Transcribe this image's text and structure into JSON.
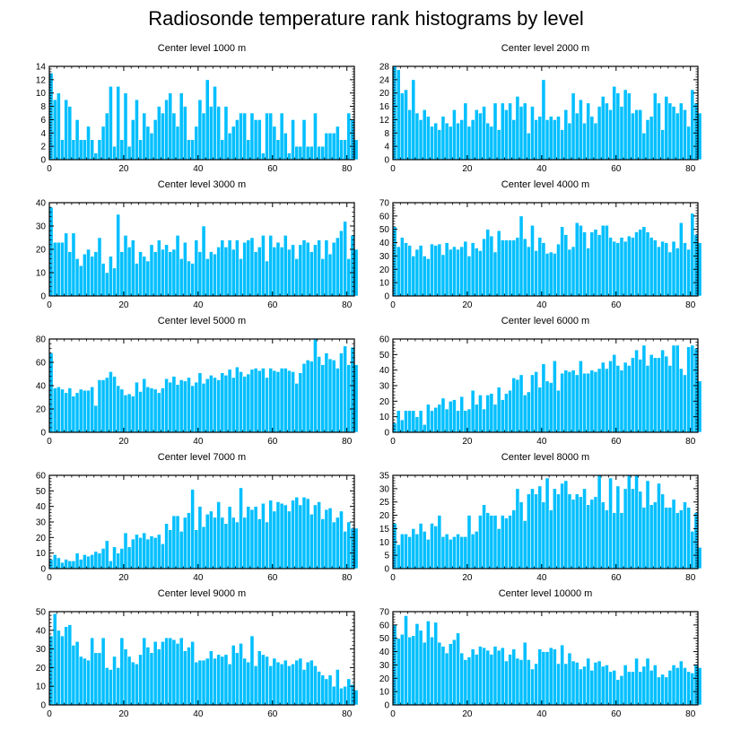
{
  "title": "Radiosonde temperature rank histograms by level",
  "colors": {
    "bar": "#00BFFF",
    "bar_edge": "#ffffff",
    "axis": "#000000"
  },
  "chart_data": [
    {
      "type": "bar",
      "title": "Center level 1000 m",
      "xlabel": "",
      "ylabel": "",
      "xlim": [
        0,
        82
      ],
      "ylim": [
        0,
        14
      ],
      "xticks": [
        0,
        20,
        40,
        60,
        80
      ],
      "yticks": [
        0,
        2,
        4,
        6,
        8,
        10,
        12,
        14
      ],
      "values": [
        13,
        9,
        10,
        3,
        9,
        8,
        3,
        6,
        3,
        3,
        5,
        3,
        1,
        3,
        5,
        7,
        11,
        2,
        11,
        3,
        10,
        2,
        6,
        9,
        3,
        7,
        5,
        4,
        6,
        8,
        7,
        9,
        10,
        7,
        5,
        10,
        8,
        3,
        3,
        5,
        9,
        7,
        12,
        8,
        11,
        8,
        3,
        8,
        4,
        5,
        6,
        7,
        7,
        3,
        7,
        6,
        6,
        1,
        7,
        7,
        5,
        3,
        7,
        4,
        1,
        6,
        2,
        2,
        6,
        2,
        2,
        7,
        2,
        2,
        4,
        4,
        4,
        5,
        3,
        3,
        7,
        6,
        3
      ]
    },
    {
      "type": "bar",
      "title": "Center level 2000 m",
      "xlabel": "",
      "ylabel": "",
      "xlim": [
        0,
        82
      ],
      "ylim": [
        0,
        28
      ],
      "xticks": [
        0,
        20,
        40,
        60,
        80
      ],
      "yticks": [
        0,
        4,
        8,
        12,
        16,
        20,
        24,
        28
      ],
      "values": [
        28,
        27,
        20,
        21,
        15,
        24,
        14,
        12,
        15,
        13,
        10,
        11,
        9,
        13,
        11,
        10,
        15,
        11,
        12,
        17,
        10,
        12,
        15,
        14,
        16,
        11,
        10,
        17,
        9,
        17,
        15,
        17,
        12,
        19,
        16,
        17,
        8,
        16,
        12,
        13,
        24,
        12,
        13,
        12,
        13,
        9,
        15,
        11,
        20,
        14,
        18,
        11,
        17,
        13,
        11,
        16,
        19,
        17,
        15,
        22,
        20,
        16,
        21,
        20,
        14,
        15,
        15,
        8,
        12,
        13,
        20,
        17,
        9,
        19,
        17,
        16,
        14,
        17,
        15,
        10,
        21,
        17,
        14
      ]
    },
    {
      "type": "bar",
      "title": "Center level 3000 m",
      "xlabel": "",
      "ylabel": "",
      "xlim": [
        0,
        82
      ],
      "ylim": [
        0,
        40
      ],
      "xticks": [
        0,
        20,
        40,
        60,
        80
      ],
      "yticks": [
        0,
        10,
        20,
        30,
        40
      ],
      "values": [
        38,
        23,
        23,
        23,
        27,
        19,
        27,
        16,
        13,
        18,
        20,
        17,
        19,
        25,
        14,
        10,
        17,
        12,
        35,
        19,
        26,
        21,
        24,
        14,
        19,
        17,
        15,
        22,
        19,
        24,
        20,
        22,
        19,
        20,
        26,
        16,
        23,
        15,
        14,
        24,
        19,
        30,
        16,
        19,
        18,
        21,
        24,
        21,
        24,
        20,
        24,
        16,
        23,
        24,
        25,
        19,
        21,
        26,
        15,
        26,
        21,
        23,
        21,
        26,
        20,
        22,
        16,
        22,
        24,
        23,
        19,
        22,
        24,
        16,
        24,
        18,
        23,
        25,
        28,
        32,
        16,
        26,
        20
      ]
    },
    {
      "type": "bar",
      "title": "Center level 4000 m",
      "xlabel": "",
      "ylabel": "",
      "xlim": [
        0,
        82
      ],
      "ylim": [
        0,
        70
      ],
      "xticks": [
        0,
        20,
        40,
        60,
        80
      ],
      "yticks": [
        0,
        10,
        20,
        30,
        40,
        50,
        60,
        70
      ],
      "values": [
        52,
        37,
        44,
        40,
        38,
        30,
        35,
        38,
        30,
        28,
        39,
        38,
        39,
        31,
        40,
        35,
        37,
        35,
        37,
        41,
        30,
        40,
        36,
        34,
        43,
        50,
        45,
        33,
        49,
        42,
        42,
        42,
        42,
        44,
        60,
        43,
        37,
        53,
        34,
        44,
        40,
        32,
        33,
        32,
        39,
        52,
        46,
        35,
        37,
        55,
        53,
        48,
        36,
        48,
        50,
        46,
        53,
        53,
        44,
        41,
        40,
        44,
        41,
        45,
        44,
        48,
        50,
        52,
        48,
        44,
        42,
        37,
        41,
        40,
        33,
        41,
        36,
        55,
        40,
        35,
        62,
        46,
        40
      ]
    },
    {
      "type": "bar",
      "title": "Center level 5000 m",
      "xlabel": "",
      "ylabel": "",
      "xlim": [
        0,
        82
      ],
      "ylim": [
        0,
        80
      ],
      "xticks": [
        0,
        20,
        40,
        60,
        80
      ],
      "yticks": [
        0,
        20,
        40,
        60,
        80
      ],
      "values": [
        68,
        38,
        39,
        37,
        34,
        38,
        31,
        34,
        37,
        36,
        36,
        39,
        23,
        45,
        45,
        47,
        52,
        48,
        40,
        37,
        32,
        33,
        31,
        43,
        35,
        46,
        39,
        38,
        37,
        34,
        38,
        46,
        43,
        48,
        41,
        45,
        44,
        47,
        40,
        43,
        51,
        42,
        46,
        49,
        47,
        45,
        51,
        49,
        54,
        47,
        56,
        52,
        48,
        50,
        54,
        55,
        53,
        55,
        47,
        55,
        53,
        52,
        55,
        55,
        53,
        52,
        42,
        51,
        59,
        62,
        61,
        80,
        65,
        58,
        68,
        63,
        62,
        55,
        68,
        74,
        58,
        73,
        58
      ]
    },
    {
      "type": "bar",
      "title": "Center level 6000 m",
      "xlabel": "",
      "ylabel": "",
      "xlim": [
        0,
        82
      ],
      "ylim": [
        0,
        60
      ],
      "xticks": [
        0,
        20,
        40,
        60,
        80
      ],
      "yticks": [
        0,
        10,
        20,
        30,
        40,
        50,
        60
      ],
      "values": [
        6,
        14,
        8,
        14,
        14,
        14,
        10,
        14,
        5,
        18,
        14,
        16,
        18,
        22,
        15,
        20,
        21,
        14,
        23,
        14,
        15,
        27,
        18,
        24,
        15,
        24,
        25,
        18,
        29,
        21,
        25,
        27,
        35,
        34,
        37,
        24,
        26,
        37,
        39,
        29,
        44,
        33,
        32,
        46,
        27,
        38,
        40,
        39,
        40,
        37,
        46,
        38,
        38,
        40,
        39,
        41,
        45,
        41,
        46,
        50,
        43,
        40,
        45,
        43,
        48,
        53,
        47,
        56,
        43,
        50,
        48,
        48,
        53,
        49,
        43,
        56,
        56,
        41,
        37,
        55,
        56,
        54,
        33
      ]
    },
    {
      "type": "bar",
      "title": "Center level 7000 m",
      "xlabel": "",
      "ylabel": "",
      "xlim": [
        0,
        82
      ],
      "ylim": [
        0,
        60
      ],
      "xticks": [
        0,
        20,
        40,
        60,
        80
      ],
      "yticks": [
        0,
        10,
        20,
        30,
        40,
        50,
        60
      ],
      "values": [
        6,
        9,
        7,
        4,
        6,
        5,
        5,
        10,
        6,
        9,
        8,
        9,
        11,
        10,
        13,
        18,
        5,
        14,
        10,
        13,
        23,
        14,
        19,
        22,
        20,
        23,
        19,
        21,
        20,
        22,
        16,
        29,
        25,
        34,
        34,
        24,
        33,
        36,
        51,
        25,
        40,
        27,
        35,
        37,
        33,
        43,
        33,
        29,
        40,
        33,
        30,
        52,
        33,
        40,
        38,
        40,
        32,
        42,
        30,
        44,
        37,
        43,
        42,
        41,
        37,
        44,
        46,
        41,
        46,
        45,
        35,
        41,
        43,
        32,
        38,
        39,
        30,
        33,
        37,
        24,
        30,
        26,
        26
      ]
    },
    {
      "type": "bar",
      "title": "Center level 8000 m",
      "xlabel": "",
      "ylabel": "",
      "xlim": [
        0,
        82
      ],
      "ylim": [
        0,
        35
      ],
      "xticks": [
        0,
        20,
        40,
        60,
        80
      ],
      "yticks": [
        0,
        5,
        10,
        15,
        20,
        25,
        30,
        35
      ],
      "values": [
        17,
        9,
        13,
        13,
        12,
        15,
        13,
        17,
        14,
        11,
        17,
        16,
        20,
        12,
        13,
        11,
        12,
        13,
        12,
        12,
        20,
        13,
        14,
        20,
        24,
        21,
        20,
        20,
        15,
        20,
        19,
        20,
        22,
        30,
        25,
        18,
        28,
        30,
        28,
        31,
        25,
        34,
        22,
        30,
        28,
        32,
        33,
        28,
        26,
        28,
        27,
        30,
        24,
        26,
        27,
        35,
        25,
        22,
        34,
        21,
        31,
        21,
        30,
        35,
        30,
        35,
        29,
        23,
        33,
        24,
        25,
        32,
        28,
        23,
        23,
        26,
        21,
        22,
        25,
        23,
        14,
        21,
        8
      ]
    },
    {
      "type": "bar",
      "title": "Center level 9000 m",
      "xlabel": "",
      "ylabel": "",
      "xlim": [
        0,
        82
      ],
      "ylim": [
        0,
        50
      ],
      "xticks": [
        0,
        20,
        40,
        60,
        80
      ],
      "yticks": [
        0,
        10,
        20,
        30,
        40,
        50
      ],
      "values": [
        37,
        49,
        40,
        37,
        42,
        43,
        32,
        34,
        26,
        25,
        24,
        36,
        28,
        28,
        36,
        20,
        19,
        26,
        20,
        36,
        30,
        26,
        23,
        22,
        27,
        36,
        31,
        28,
        34,
        30,
        34,
        36,
        36,
        35,
        33,
        36,
        29,
        31,
        34,
        23,
        24,
        24,
        25,
        29,
        25,
        27,
        26,
        27,
        22,
        32,
        28,
        33,
        25,
        23,
        37,
        21,
        29,
        27,
        26,
        21,
        25,
        23,
        22,
        24,
        21,
        22,
        24,
        25,
        19,
        23,
        24,
        21,
        18,
        16,
        14,
        16,
        10,
        19,
        9,
        10,
        14,
        11,
        8
      ]
    },
    {
      "type": "bar",
      "title": "Center level 10000 m",
      "xlabel": "",
      "ylabel": "",
      "xlim": [
        0,
        82
      ],
      "ylim": [
        0,
        70
      ],
      "xticks": [
        0,
        20,
        40,
        60,
        80
      ],
      "yticks": [
        0,
        10,
        20,
        30,
        40,
        50,
        60,
        70
      ],
      "values": [
        60,
        50,
        53,
        67,
        51,
        52,
        61,
        56,
        47,
        63,
        51,
        62,
        47,
        44,
        39,
        46,
        49,
        54,
        39,
        34,
        36,
        42,
        38,
        44,
        43,
        41,
        38,
        44,
        41,
        43,
        33,
        38,
        42,
        35,
        34,
        47,
        34,
        27,
        31,
        42,
        40,
        40,
        43,
        42,
        31,
        45,
        31,
        39,
        33,
        32,
        27,
        29,
        35,
        26,
        32,
        33,
        29,
        30,
        25,
        26,
        19,
        22,
        30,
        25,
        25,
        35,
        25,
        29,
        35,
        26,
        30,
        21,
        23,
        21,
        26,
        30,
        28,
        33,
        28,
        25,
        24,
        30,
        28
      ]
    }
  ]
}
